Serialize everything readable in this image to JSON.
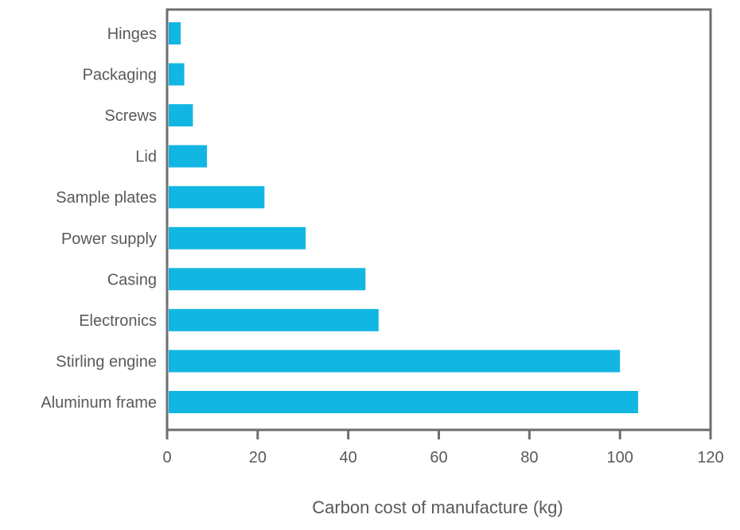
{
  "chart_data": {
    "type": "bar",
    "orientation": "horizontal",
    "categories": [
      "Hinges",
      "Packaging",
      "Screws",
      "Lid",
      "Sample plates",
      "Power supply",
      "Casing",
      "Electronics",
      "Stirling engine",
      "Aluminum frame"
    ],
    "values": [
      3.0,
      3.8,
      5.7,
      8.8,
      21.5,
      30.6,
      43.8,
      46.7,
      100,
      104
    ],
    "title": "",
    "xlabel": "Carbon cost of manufacture (kg)",
    "ylabel": "",
    "xlim": [
      0,
      120
    ],
    "xticks": [
      "0",
      "20",
      "40",
      "60",
      "80",
      "100",
      "120"
    ],
    "grid": false,
    "bar_color": "#12b6e3",
    "frame_color": "#6d6e71"
  }
}
